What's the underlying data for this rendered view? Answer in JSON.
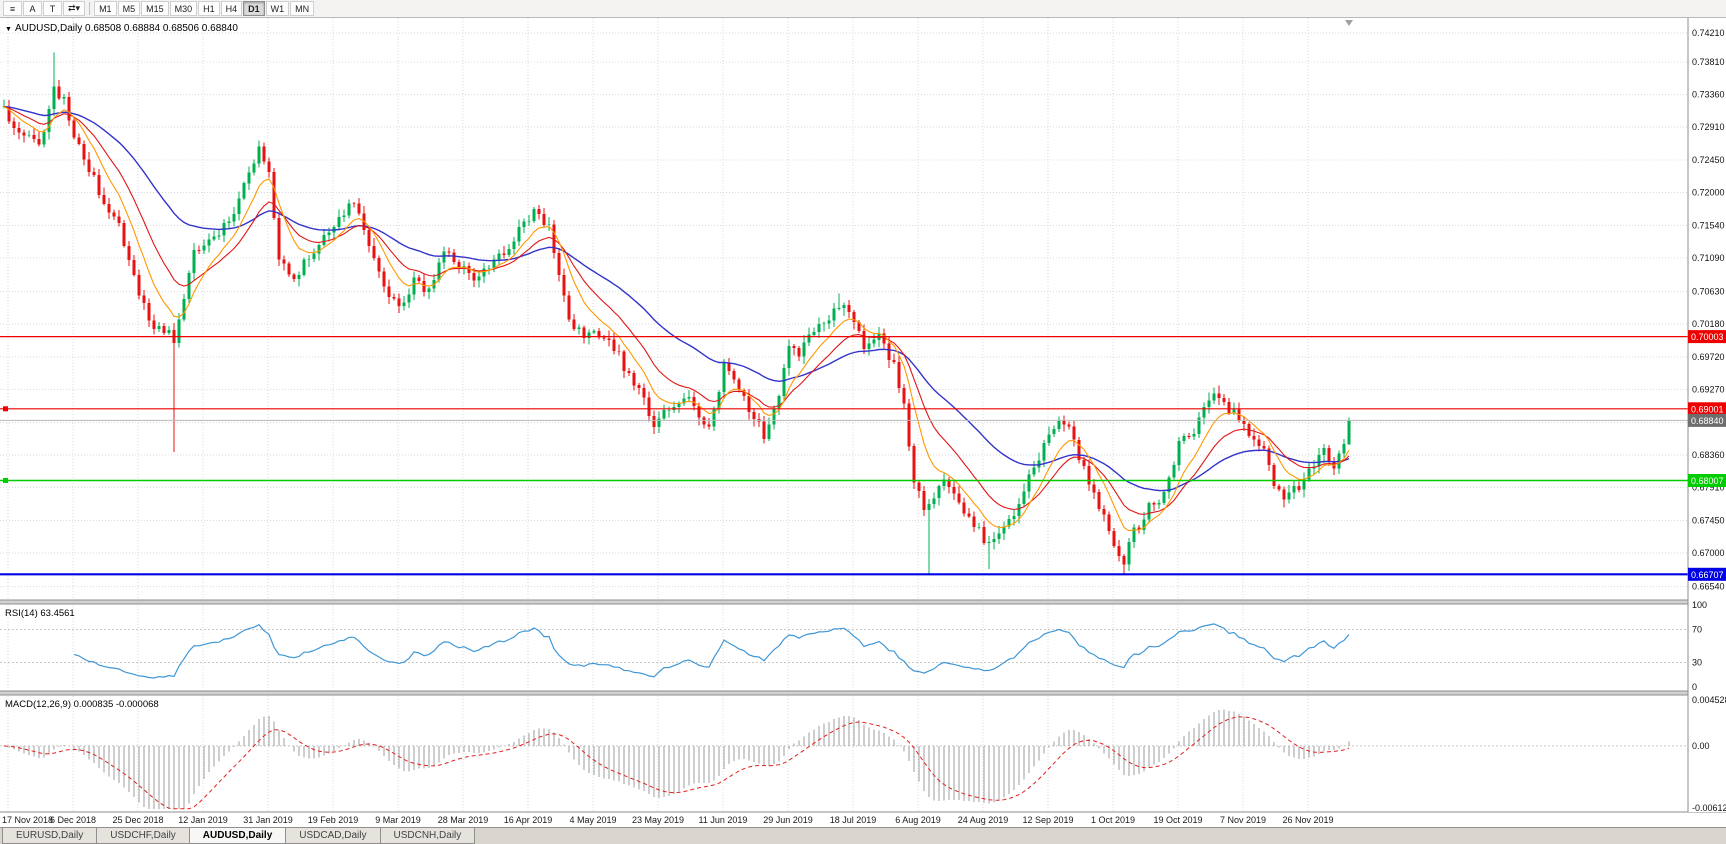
{
  "toolbar": {
    "tools": [
      {
        "id": "chart-list",
        "glyph": "≡"
      },
      {
        "id": "annotate-a",
        "glyph": "A"
      },
      {
        "id": "annotate-text",
        "glyph": "T"
      },
      {
        "id": "cursor-mode",
        "glyph": "⇄▾"
      }
    ],
    "timeframes": [
      "M1",
      "M5",
      "M15",
      "M30",
      "H1",
      "H4",
      "D1",
      "W1",
      "MN"
    ],
    "active_timeframe": "D1"
  },
  "chart": {
    "collapse_arrow": "▼",
    "title": "AUDUSD,Daily",
    "ohlc": {
      "open": "0.68508",
      "high": "0.68884",
      "low": "0.68506",
      "close": "0.68840"
    },
    "price_axis_labels": [
      "0.74210",
      "0.73810",
      "0.73360",
      "0.72910",
      "0.72450",
      "0.72000",
      "0.71540",
      "0.71090",
      "0.70630",
      "0.70180",
      "0.69720",
      "0.69270",
      "0.68810",
      "0.68360",
      "0.67910",
      "0.67450",
      "0.67000",
      "0.66540"
    ],
    "hlines": [
      {
        "price": 0.70003,
        "label": "0.70003",
        "color": "#ee0000",
        "width": 1.2,
        "handles": false
      },
      {
        "price": 0.69001,
        "label": "0.69001",
        "color": "#ee0000",
        "width": 1.2,
        "handles": true
      },
      {
        "price": 0.68007,
        "label": "0.68007",
        "color": "#00cc00",
        "width": 1.6,
        "handles": true
      },
      {
        "price": 0.66707,
        "label": "0.66707",
        "color": "#0000e6",
        "width": 2.2,
        "handles": false
      }
    ],
    "current_price": {
      "value": 0.6884,
      "label": "0.68840",
      "line_color": "#b8b8b8",
      "badge_color": "#6e6e6e"
    },
    "candle_colors": {
      "up": "#00b050",
      "down": "#e81212"
    },
    "ma_colors": {
      "fast": "#ff9800",
      "medium": "#e01616",
      "slow": "#3333cc"
    },
    "grid_color": "#dadada"
  },
  "rsi": {
    "label": "RSI(14) 63.4561",
    "value": "63.4561",
    "levels": [
      "100",
      "70",
      "30",
      "0"
    ],
    "color": "#3f97d6"
  },
  "macd": {
    "label": "MACD(12,26,9) 0.000835 -0.000068",
    "main_value": "0.000835",
    "signal_value": "-0.000068",
    "axis": [
      "0.004528",
      "0.00",
      "-0.006122"
    ],
    "hist_color": "#9e9e9e",
    "signal_color": "#e02020"
  },
  "dates": [
    "17 Nov 2018",
    "6 Dec 2018",
    "25 Dec 2018",
    "12 Jan 2019",
    "31 Jan 2019",
    "19 Feb 2019",
    "9 Mar 2019",
    "28 Mar 2019",
    "16 Apr 2019",
    "4 May 2019",
    "23 May 2019",
    "11 Jun 2019",
    "29 Jun 2019",
    "18 Jul 2019",
    "6 Aug 2019",
    "24 Aug 2019",
    "12 Sep 2019",
    "1 Oct 2019",
    "19 Oct 2019",
    "7 Nov 2019",
    "26 Nov 2019"
  ],
  "tabs": [
    "EURUSD,Daily",
    "USDCHF,Daily",
    "AUDUSD,Daily",
    "USDCAD,Daily",
    "USDCNH,Daily"
  ],
  "active_tab": "AUDUSD,Daily",
  "chart_data": {
    "type": "candlestick",
    "symbol": "AUDUSD",
    "timeframe": "Daily",
    "num_candles": 270,
    "price_range": {
      "top": 0.7442,
      "bottom": 0.6635
    },
    "rsi_range": [
      0,
      100
    ],
    "macd_range": [
      -0.006122,
      0.004528
    ],
    "anchors": [
      [
        0,
        0.7312
      ],
      [
        4,
        0.7282
      ],
      [
        7,
        0.726
      ],
      [
        10,
        0.7345
      ],
      [
        12,
        0.733
      ],
      [
        14,
        0.7282
      ],
      [
        17,
        0.723
      ],
      [
        20,
        0.719
      ],
      [
        23,
        0.715
      ],
      [
        27,
        0.7062
      ],
      [
        30,
        0.701
      ],
      [
        33,
        0.7005
      ],
      [
        34,
        0.6988
      ],
      [
        36,
        0.706
      ],
      [
        38,
        0.712
      ],
      [
        42,
        0.7135
      ],
      [
        45,
        0.716
      ],
      [
        48,
        0.721
      ],
      [
        51,
        0.7258
      ],
      [
        53,
        0.7222
      ],
      [
        55,
        0.711
      ],
      [
        58,
        0.7085
      ],
      [
        61,
        0.711
      ],
      [
        64,
        0.7135
      ],
      [
        66,
        0.7158
      ],
      [
        70,
        0.7188
      ],
      [
        73,
        0.713
      ],
      [
        76,
        0.7068
      ],
      [
        79,
        0.7045
      ],
      [
        82,
        0.7075
      ],
      [
        85,
        0.706
      ],
      [
        88,
        0.7125
      ],
      [
        91,
        0.7098
      ],
      [
        94,
        0.7078
      ],
      [
        97,
        0.7095
      ],
      [
        100,
        0.7115
      ],
      [
        103,
        0.715
      ],
      [
        106,
        0.7172
      ],
      [
        109,
        0.7158
      ],
      [
        111,
        0.709
      ],
      [
        113,
        0.7018
      ],
      [
        116,
        0.7002
      ],
      [
        118,
        0.7012
      ],
      [
        121,
        0.6995
      ],
      [
        124,
        0.696
      ],
      [
        127,
        0.693
      ],
      [
        130,
        0.6878
      ],
      [
        133,
        0.6902
      ],
      [
        136,
        0.6922
      ],
      [
        139,
        0.689
      ],
      [
        141,
        0.6868
      ],
      [
        144,
        0.6958
      ],
      [
        147,
        0.6932
      ],
      [
        150,
        0.6888
      ],
      [
        152,
        0.6862
      ],
      [
        155,
        0.6925
      ],
      [
        157,
        0.6992
      ],
      [
        159,
        0.6978
      ],
      [
        161,
        0.7005
      ],
      [
        164,
        0.7025
      ],
      [
        167,
        0.7042
      ],
      [
        170,
        0.7028
      ],
      [
        172,
        0.6985
      ],
      [
        175,
        0.7008
      ],
      [
        178,
        0.6958
      ],
      [
        180,
        0.6902
      ],
      [
        182,
        0.6805
      ],
      [
        184,
        0.6758
      ],
      [
        186,
        0.6772
      ],
      [
        188,
        0.6802
      ],
      [
        190,
        0.6788
      ],
      [
        193,
        0.6745
      ],
      [
        196,
        0.6722
      ],
      [
        198,
        0.6712
      ],
      [
        200,
        0.6732
      ],
      [
        203,
        0.6772
      ],
      [
        206,
        0.682
      ],
      [
        209,
        0.6868
      ],
      [
        211,
        0.6888
      ],
      [
        213,
        0.6872
      ],
      [
        215,
        0.6832
      ],
      [
        218,
        0.6788
      ],
      [
        220,
        0.6748
      ],
      [
        222,
        0.6702
      ],
      [
        224,
        0.6688
      ],
      [
        226,
        0.6728
      ],
      [
        229,
        0.6762
      ],
      [
        232,
        0.6782
      ],
      [
        235,
        0.6852
      ],
      [
        238,
        0.6872
      ],
      [
        240,
        0.6895
      ],
      [
        242,
        0.692
      ],
      [
        244,
        0.6902
      ],
      [
        246,
        0.6892
      ],
      [
        248,
        0.6878
      ],
      [
        250,
        0.6858
      ],
      [
        252,
        0.6838
      ],
      [
        254,
        0.6795
      ],
      [
        256,
        0.6782
      ],
      [
        258,
        0.6788
      ],
      [
        260,
        0.6802
      ],
      [
        262,
        0.6818
      ],
      [
        264,
        0.6838
      ],
      [
        266,
        0.682
      ],
      [
        268,
        0.6852
      ],
      [
        269,
        0.6884
      ]
    ],
    "wick_overrides": [
      [
        10,
        "h",
        0.7394
      ],
      [
        34,
        "l",
        0.684
      ],
      [
        51,
        "h",
        0.7272
      ],
      [
        106,
        "h",
        0.718
      ],
      [
        130,
        "l",
        0.6865
      ],
      [
        167,
        "h",
        0.706
      ],
      [
        185,
        "l",
        0.6672
      ],
      [
        197,
        "l",
        0.6678
      ],
      [
        224,
        "l",
        0.6671
      ],
      [
        242,
        "h",
        0.693
      ]
    ],
    "last_candle": {
      "open": 0.68508,
      "high": 0.68884,
      "low": 0.68506,
      "close": 0.6884
    }
  }
}
